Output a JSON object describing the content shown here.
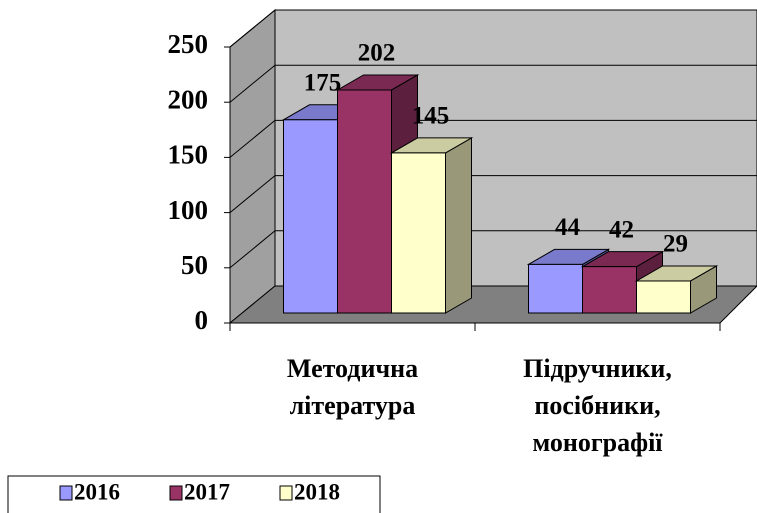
{
  "chart_data": {
    "type": "bar3d",
    "categories": [
      "Методична література",
      "Підручники, посібники, монографії"
    ],
    "series": [
      {
        "name": "2016",
        "color": "#9999ff",
        "values": [
          175,
          44
        ]
      },
      {
        "name": "2017",
        "color": "#993366",
        "values": [
          202,
          42
        ]
      },
      {
        "name": "2018",
        "color": "#ffffcc",
        "values": [
          145,
          29
        ]
      }
    ],
    "ylim": [
      0,
      250
    ],
    "yticks": [
      0,
      50,
      100,
      150,
      200,
      250
    ],
    "grid": true,
    "legend": "bottom"
  }
}
